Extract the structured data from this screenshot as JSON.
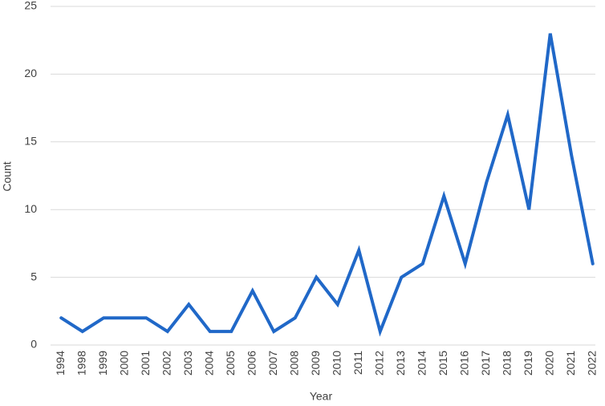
{
  "chart_data": {
    "type": "line",
    "x_label": "Year",
    "y_label": "Count",
    "categories": [
      "1994",
      "1998",
      "1999",
      "2000",
      "2001",
      "2002",
      "2003",
      "2004",
      "2005",
      "2006",
      "2007",
      "2008",
      "2009",
      "2010",
      "2011",
      "2012",
      "2013",
      "2014",
      "2015",
      "2016",
      "2017",
      "2018",
      "2019",
      "2020",
      "2021",
      "2022"
    ],
    "series": [
      {
        "name": "Count",
        "color": "#2068c8",
        "values": [
          2,
          1,
          2,
          2,
          2,
          1,
          3,
          1,
          1,
          4,
          1,
          2,
          5,
          3,
          7,
          1,
          5,
          6,
          11,
          6,
          12,
          17,
          10,
          23,
          14,
          6
        ]
      }
    ],
    "ylim": [
      0,
      25
    ],
    "yticks": [
      0,
      5,
      10,
      15,
      20,
      25
    ],
    "grid": true
  }
}
